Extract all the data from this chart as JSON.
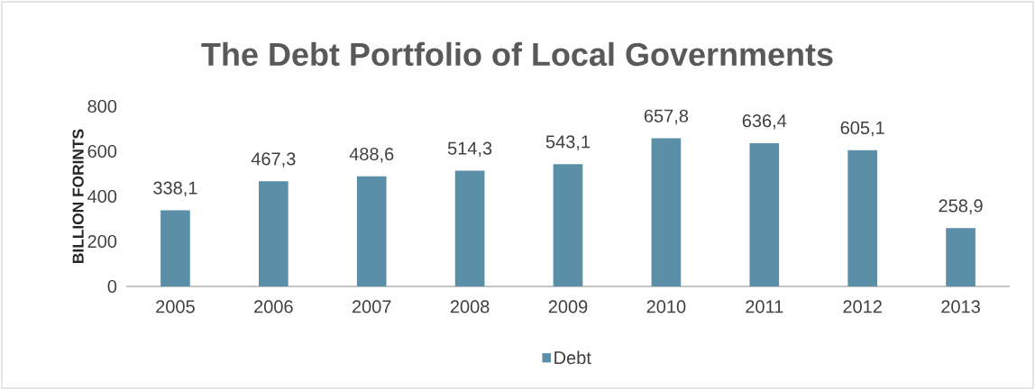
{
  "chart_data": {
    "type": "bar",
    "title": "The Debt Portfolio of Local Governments",
    "ylabel": "BILLION FORINTS",
    "categories": [
      "2005",
      "2006",
      "2007",
      "2008",
      "2009",
      "2010",
      "2011",
      "2012",
      "2013"
    ],
    "series": [
      {
        "name": "Debt",
        "color": "#5b8fa8",
        "values": [
          338.1,
          467.3,
          488.6,
          514.3,
          543.1,
          657.8,
          636.4,
          605.1,
          258.9
        ],
        "value_labels": [
          "338,1",
          "467,3",
          "488,6",
          "514,3",
          "543,1",
          "657,8",
          "636,4",
          "605,1",
          "258,9"
        ]
      }
    ],
    "ylim": [
      0,
      800
    ],
    "yticks": [
      0,
      200,
      400,
      600,
      800
    ],
    "legend": "bottom"
  }
}
